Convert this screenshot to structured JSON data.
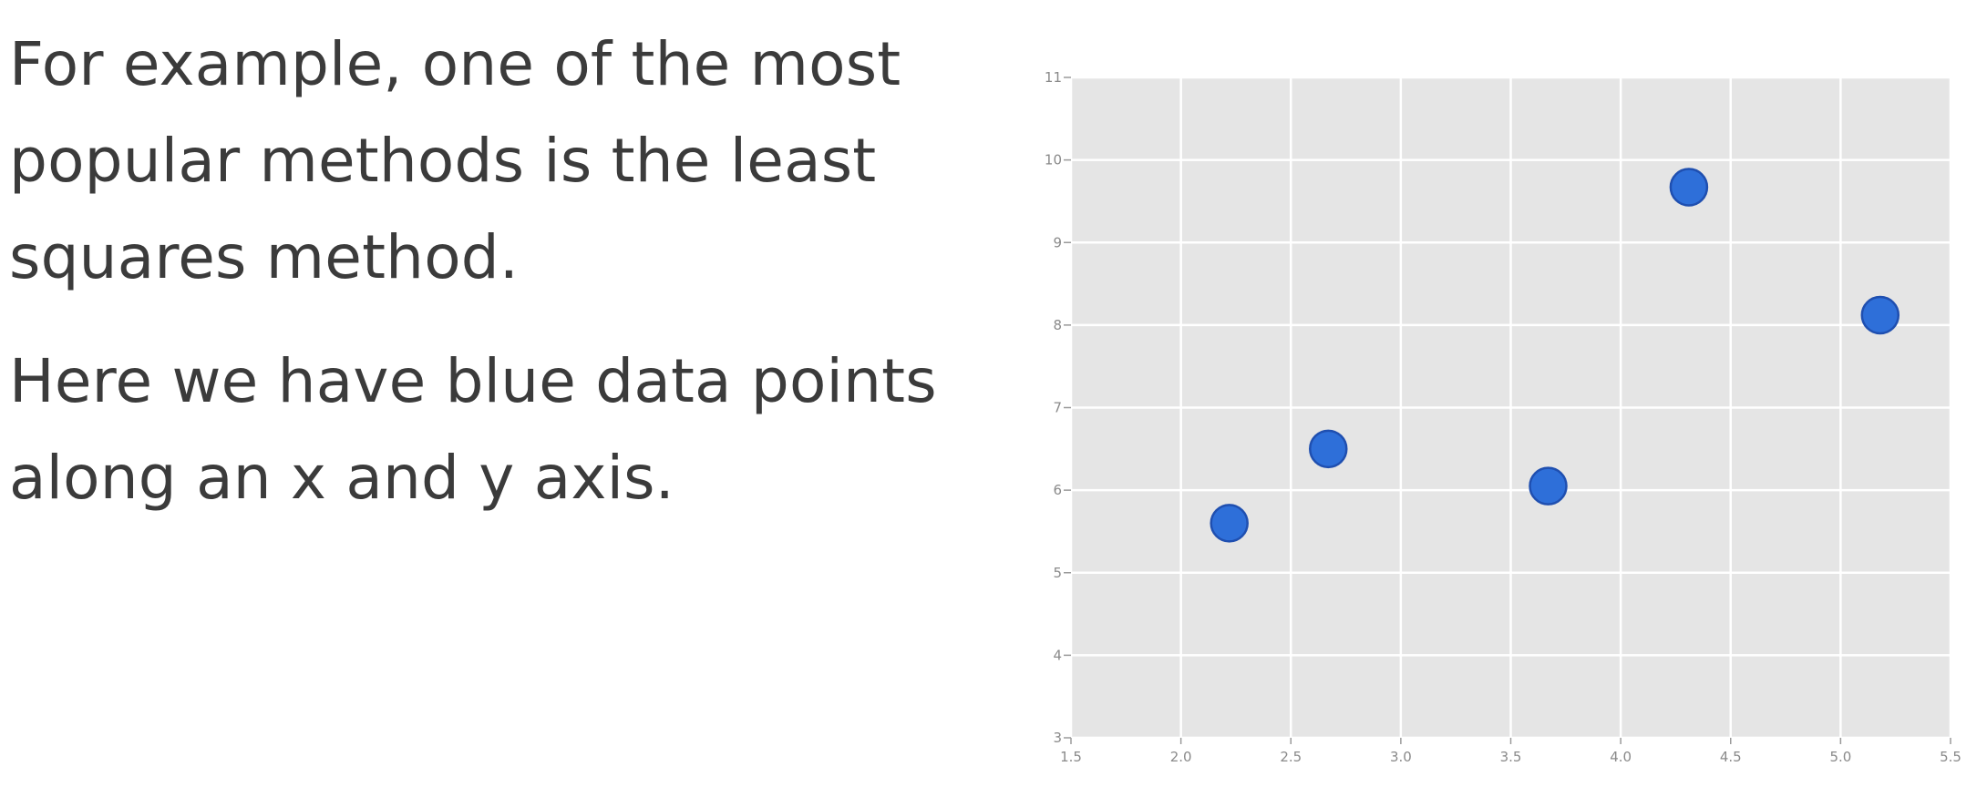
{
  "slide": {
    "paragraphs": [
      "For example, one of the most popular methods is the least squares method.",
      "Here we have blue data points along an x and y axis."
    ]
  },
  "chart_data": {
    "type": "scatter",
    "title": "",
    "xlabel": "",
    "ylabel": "",
    "xlim": [
      1.5,
      5.5
    ],
    "ylim": [
      3,
      11
    ],
    "x_ticks": [
      "1.5",
      "2.0",
      "2.5",
      "3.0",
      "3.5",
      "4.0",
      "4.5",
      "5.0",
      "5.5"
    ],
    "y_ticks": [
      "3",
      "4",
      "5",
      "6",
      "7",
      "8",
      "9",
      "10",
      "11"
    ],
    "grid": true,
    "colors": {
      "plot_background": "#e5e5e5",
      "grid": "#ffffff",
      "point_fill": "#2e6fd9",
      "point_stroke": "#1f4fb0",
      "tick_label": "#8a8a8a"
    },
    "series": [
      {
        "points": [
          {
            "x": 2.22,
            "y": 5.6
          },
          {
            "x": 2.67,
            "y": 6.5
          },
          {
            "x": 3.67,
            "y": 6.05
          },
          {
            "x": 4.31,
            "y": 9.67
          },
          {
            "x": 5.18,
            "y": 8.12
          }
        ]
      }
    ]
  }
}
